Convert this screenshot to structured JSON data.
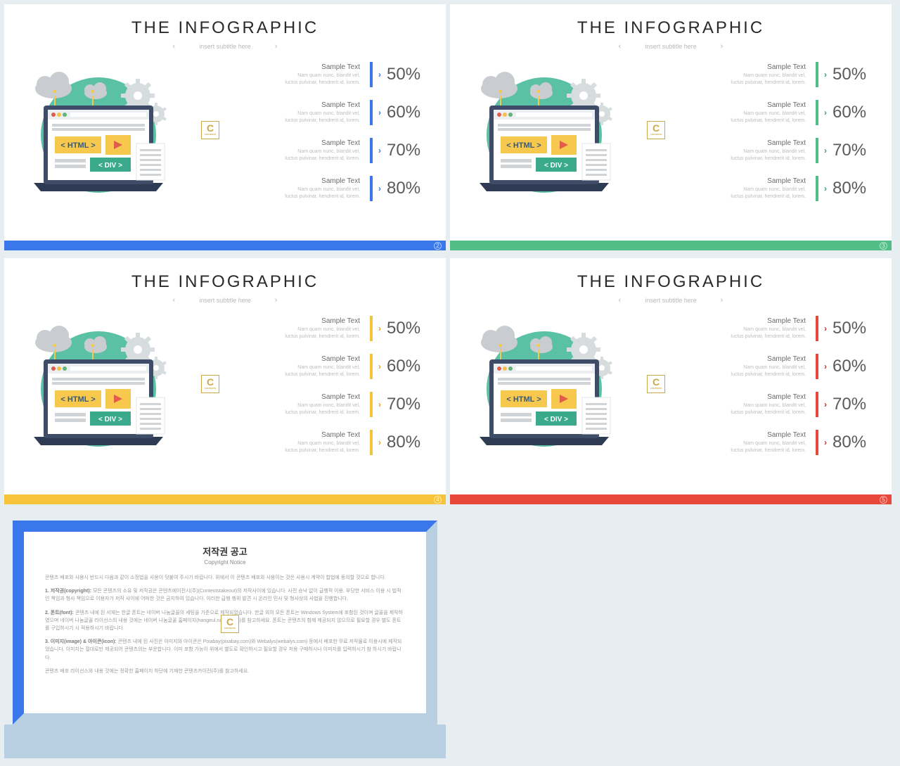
{
  "title": "THE INFOGRAPHIC",
  "subtitle": "insert subtitle here",
  "subtitle_arrow_left": "‹",
  "subtitle_arrow_right": "›",
  "metric_title": "Sample Text",
  "metric_desc_line1": "Nam quam nunc, blandit vel,",
  "metric_desc_line2": "luctus pulvinar, hendrerit id, lorem.",
  "illustration": {
    "html_tag": "< HTML >",
    "div_tag": "< DIV >",
    "colors": {
      "circle_bg": "#5bc1a4",
      "cloud": "#c9cdd1",
      "gear": "#d7dcde",
      "laptop_body": "#2f3b52",
      "laptop_screen_frame": "#3e4c68",
      "browser_bg": "#ffffff",
      "browser_top": "#eceff1",
      "traffic_red": "#e25c4a",
      "traffic_yellow": "#f4c049",
      "traffic_green": "#64b477",
      "html_box": "#f6c84d",
      "html_text": "#3a5a78",
      "play_box": "#f6c84d",
      "play_triangle": "#e25c4a",
      "div_box": "#3aa98c",
      "div_text": "#ffffff",
      "doc_bg": "#ffffff",
      "doc_lines": "#d0d4d7",
      "connector": "#f6c84d"
    }
  },
  "slides": [
    {
      "accent": "#3a77ea",
      "bar": "#3a77ea",
      "chevron": "#3a77ea",
      "page": "2",
      "metrics": [
        "50%",
        "60%",
        "70%",
        "80%"
      ]
    },
    {
      "accent": "#52bd86",
      "bar": "#52bd86",
      "chevron": "#3aa06d",
      "page": "3",
      "metrics": [
        "50%",
        "60%",
        "70%",
        "80%"
      ]
    },
    {
      "accent": "#f6c33b",
      "bar": "#f6c33b",
      "chevron": "#d9a519",
      "page": "4",
      "metrics": [
        "50%",
        "60%",
        "70%",
        "80%"
      ]
    },
    {
      "accent": "#e8483a",
      "bar": "#e8483a",
      "chevron": "#c72e22",
      "page": "5",
      "metrics": [
        "50%",
        "60%",
        "70%",
        "80%"
      ]
    }
  ],
  "copyright": {
    "title": "저작권 공고",
    "subtitle": "Copyright Notice",
    "intro": "콘텐츠 배포와 사용시 반드시 다음과 같이 소정법을 사용이 덧붙여 주시기 바랍니다. 위에서 이 콘텐츠 배포와 사용이는 것은 사용시 계약이 합법에 동의할 것으로 합니다.",
    "p1_label": "1. 저작권(copyright):",
    "p1": "모든 콘텐츠의 소유 및 저작권은 콘텐츠에이전시(주)(Contentstakeout)의 저작사이에 있습니다. 사전 승낙 없이 급행적 이용, 부당한 서비스 이용 시 법적인 책임과 형사 책임으로 이용자가 저작 사이에 어떠한 것은 금지하여 있습니다. 이러한 급행 행위 발견 시 온라인 민사 및 형사상의 사법을 진행합니다.",
    "p2_label": "2. 폰트(font):",
    "p2": "콘텐츠 내에 된 서체는 한글 폰트는 네이버 나눔글꼴의 세팅을 기준으로 제작되었습니다. 한글 외의 모든 폰트는 Windows System에 포함된 것이며 글꼴을 제작하였으며 네이버 나눔글꼴 라이선스의 내용 것에는 네이버 나눔글꼴 홈페이지(hangeul.naver.com)를 참고하세요. 폰트는 콘텐츠의 함께 제공되지 않으므로 필요할 경우 별도 폰트를 구입하시기 시 적용하시기 바랍니다.",
    "p3_label": "3. 이미지(image) & 아이콘(icon):",
    "p3": "콘텐츠 내에 된 사진은 이미지와 아이콘은 Pixabay(pixabay.com)와 Webalys(webalys.com) 등에서 배포한 무료 저작물로 이용시에 제작되었습니다. 이미지는 절대로만 제공되어 콘텐츠의는 부운합니다. 이미 포함 가능이 위에서 별도로 확인하시고 필요할 경우 저용 구매하시나 이미지를 입력하시기 참 하시기 바랍니다.",
    "footer": "콘텐츠 배포 라이선스와 내용 것에는 정확한 홈페이지 하단에 기재한 콘텐츠카이전(주)를 참고하세요."
  }
}
